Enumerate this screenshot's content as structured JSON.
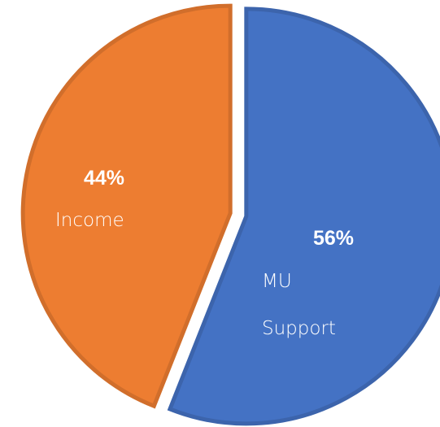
{
  "chart_data": {
    "type": "pie",
    "categories": [
      "MU Support",
      "Income"
    ],
    "values": [
      56,
      44
    ],
    "value_labels": [
      "56%",
      "44%"
    ],
    "colors": [
      "#4472c4",
      "#ed7d31"
    ]
  }
}
